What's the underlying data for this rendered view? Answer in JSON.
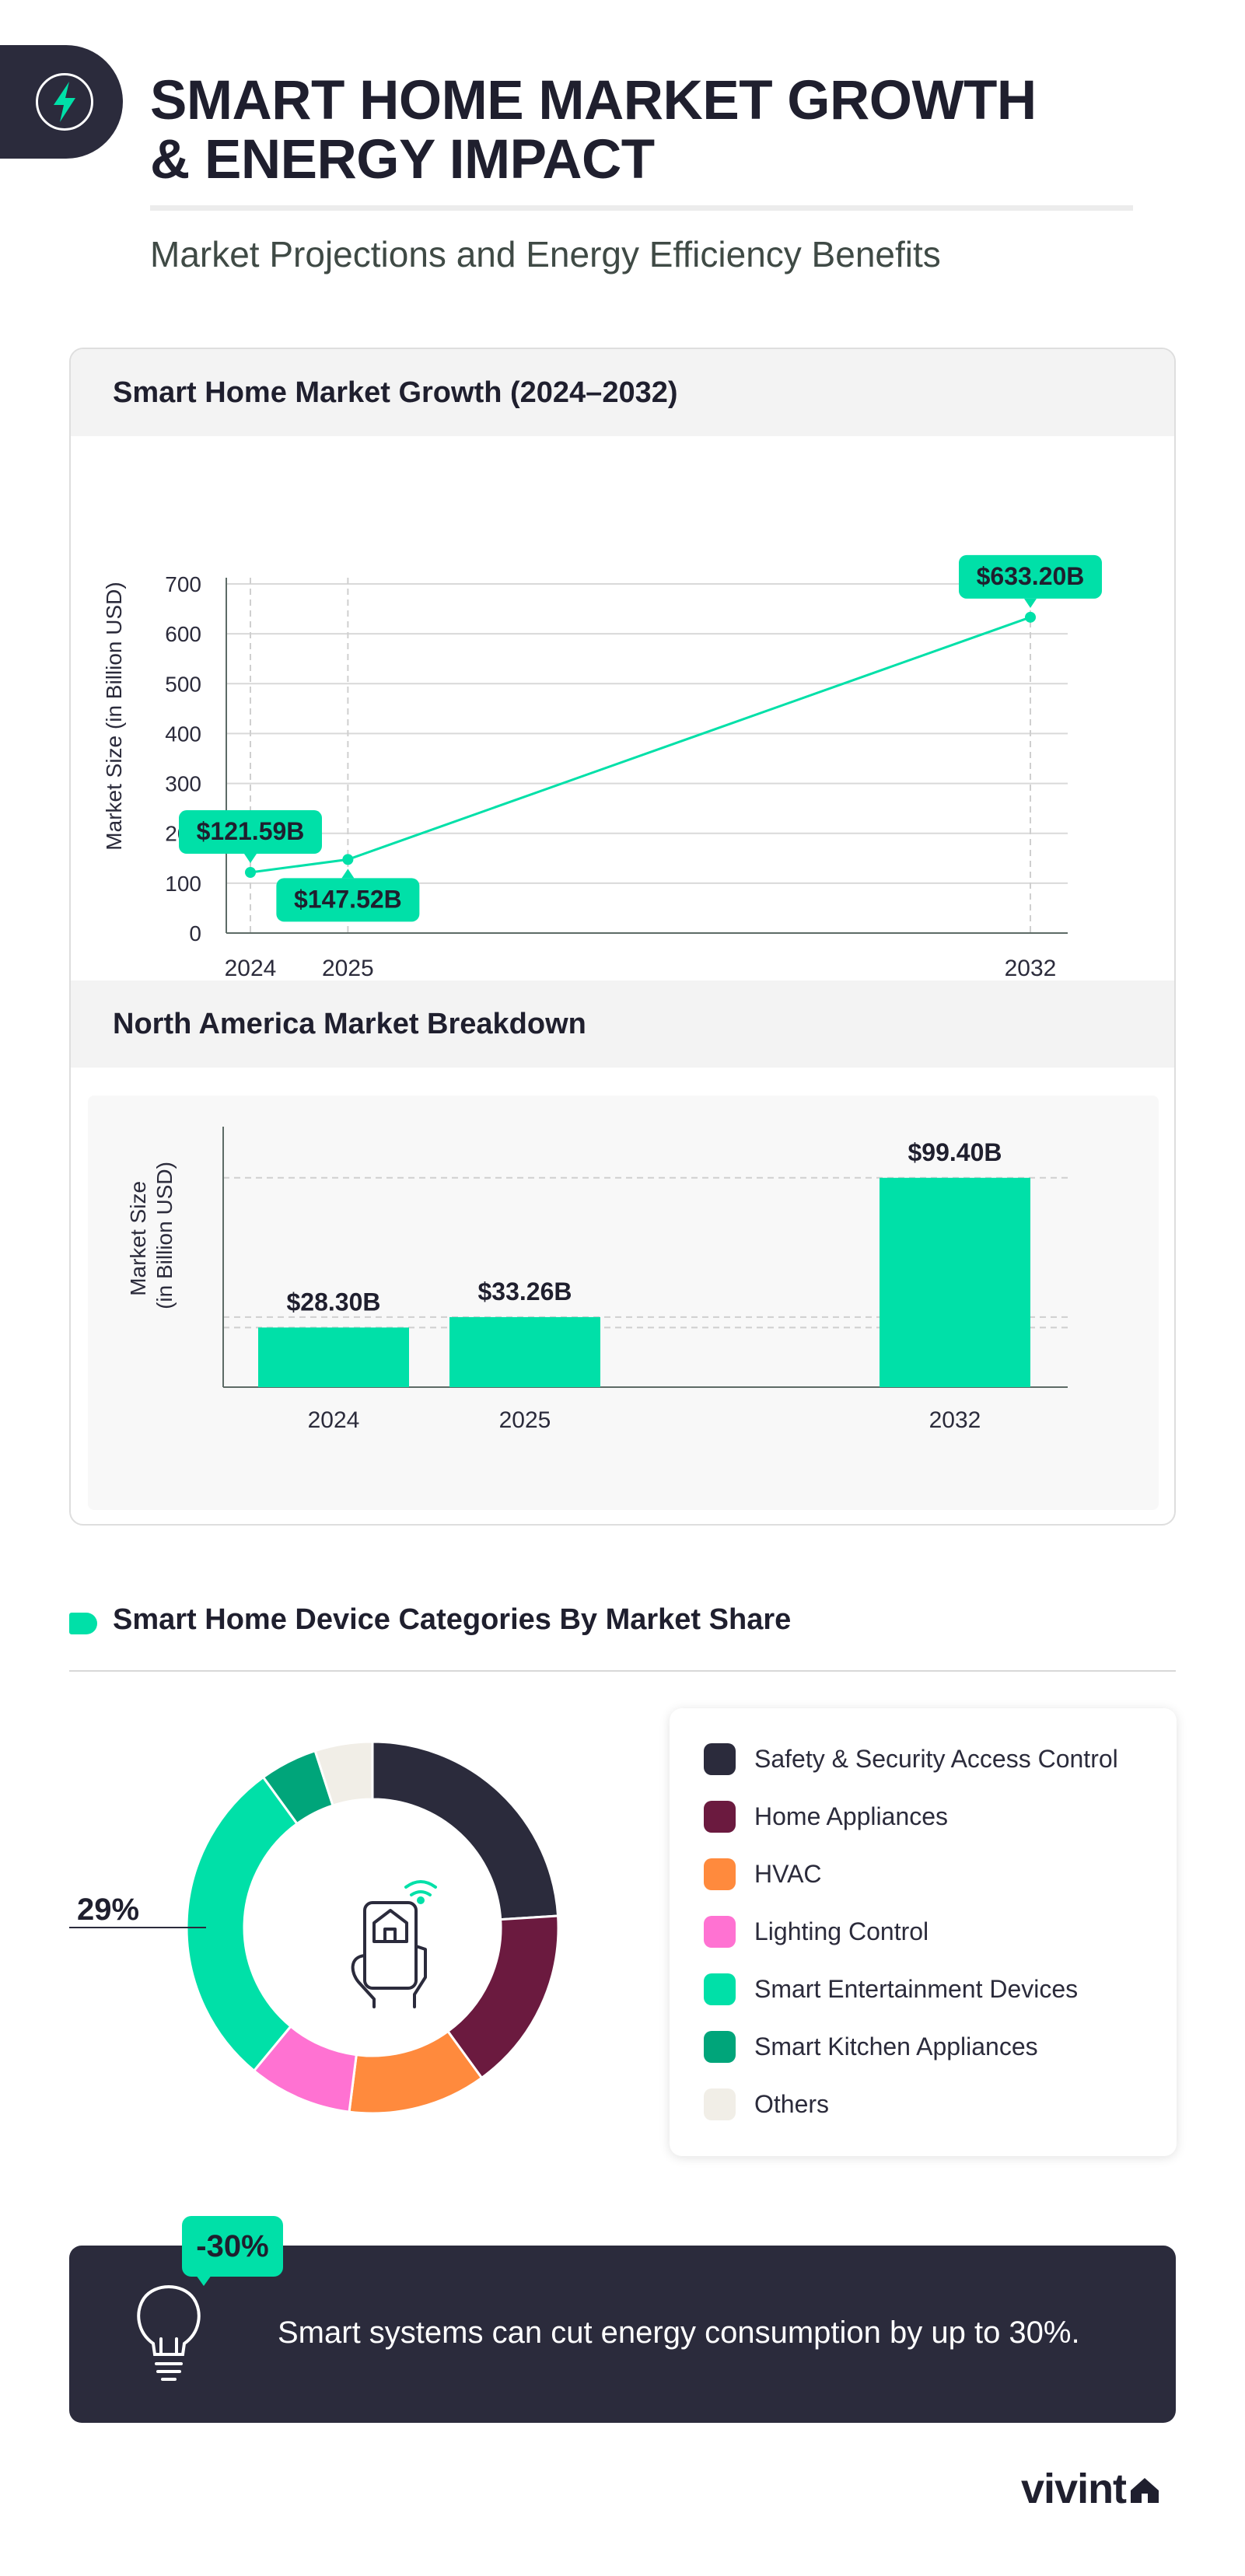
{
  "header": {
    "title_line1": "SMART HOME MARKET GROWTH",
    "title_line2": "& ENERGY IMPACT",
    "subtitle": "Market Projections and Energy Efficiency Benefits"
  },
  "colors": {
    "accent": "#00e0a8",
    "dark": "#2b2b3c"
  },
  "chart_data": [
    {
      "type": "line",
      "title": "Smart Home Market Growth (2024–2032)",
      "xlabel": "",
      "ylabel": "Market Size (in Billion USD)",
      "x": [
        2024,
        2025,
        2032
      ],
      "series": [
        {
          "values": [
            121.59,
            147.52,
            633.2
          ]
        }
      ],
      "data_labels": [
        "$121.59B",
        "$147.52B",
        "$633.20B"
      ],
      "ylim": [
        0,
        700
      ],
      "yticks": [
        0,
        100,
        200,
        300,
        400,
        500,
        600,
        700
      ],
      "grid": true
    },
    {
      "type": "bar",
      "title": "North America Market Breakdown",
      "xlabel": "",
      "ylabel": "Market Size (in Billion USD)",
      "categories": [
        "2024",
        "2025",
        "2032"
      ],
      "values": [
        28.3,
        33.26,
        99.4
      ],
      "data_labels": [
        "$28.30B",
        "$33.26B",
        "$99.40B"
      ],
      "ylim": [
        0,
        120
      ]
    },
    {
      "type": "pie",
      "title": "Smart Home Device Categories By Market Share",
      "categories": [
        "Safety & Security Access Control",
        "Home Appliances",
        "HVAC",
        "Lighting Control",
        "Smart Entertainment Devices",
        "Smart Kitchen Appliances",
        "Others"
      ],
      "values": [
        24,
        16,
        12,
        9,
        29,
        5,
        5
      ],
      "colors": [
        "#2b2b3c",
        "#6b1a3f",
        "#ff8a3d",
        "#ff72d2",
        "#00e0a8",
        "#00a57a",
        "#f1eee7"
      ],
      "callout": "29%",
      "legend_position": "right"
    }
  ],
  "energy": {
    "badge": "-30%",
    "message": "Smart systems can cut energy consumption by up to 30%.",
    "icon": "lightbulb-icon"
  },
  "brand": {
    "logo_text": "vivint",
    "icon": "house-icon"
  }
}
